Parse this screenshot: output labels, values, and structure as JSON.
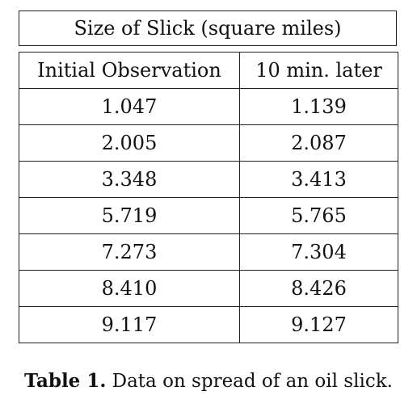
{
  "table": {
    "title": "Size of Slick (square miles)",
    "columns": [
      "Initial Observation",
      "10 min. later"
    ],
    "rows": [
      [
        "1.047",
        "1.139"
      ],
      [
        "2.005",
        "2.087"
      ],
      [
        "3.348",
        "3.413"
      ],
      [
        "5.719",
        "5.765"
      ],
      [
        "7.273",
        "7.304"
      ],
      [
        "8.410",
        "8.426"
      ],
      [
        "9.117",
        "9.127"
      ]
    ]
  },
  "caption": {
    "label": "Table 1.",
    "text": "Data on spread of an oil slick."
  }
}
